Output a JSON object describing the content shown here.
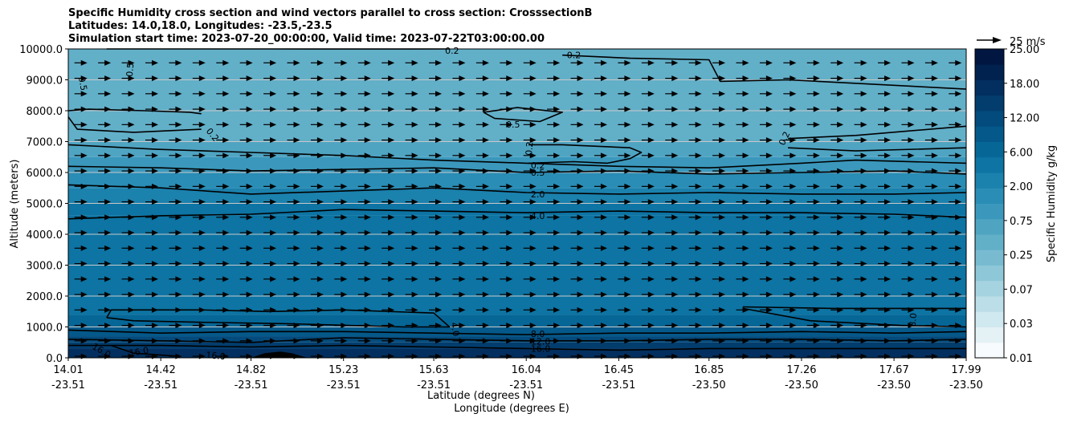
{
  "chart_data": {
    "type": "contour",
    "title_lines": [
      "Specific Humidity cross section and wind vectors parallel to cross section: CrosssectionB",
      "Latitudes: 14.0,18.0, Longitudes: -23.5,-23.5",
      "Simulation start time: 2023-07-20_00:00:00, Valid time: 2023-07-22T03:00:00.00"
    ],
    "xlabel_lat": "Latitude (degrees N)",
    "xlabel_lon": "Longitude (degrees E)",
    "ylabel": "Altitude (meters)",
    "ylim": [
      0,
      10000
    ],
    "xlim": [
      14.01,
      17.99
    ],
    "y_ticks": [
      "0.0",
      "1000.0",
      "2000.0",
      "3000.0",
      "4000.0",
      "5000.0",
      "6000.0",
      "7000.0",
      "8000.0",
      "9000.0",
      "10000.0"
    ],
    "y_tick_values": [
      0,
      1000,
      2000,
      3000,
      4000,
      5000,
      6000,
      7000,
      8000,
      9000,
      10000
    ],
    "x_ticks": [
      {
        "lat": "14.01",
        "lon": "-23.51"
      },
      {
        "lat": "14.42",
        "lon": "-23.51"
      },
      {
        "lat": "14.82",
        "lon": "-23.51"
      },
      {
        "lat": "15.23",
        "lon": "-23.51"
      },
      {
        "lat": "15.63",
        "lon": "-23.51"
      },
      {
        "lat": "16.04",
        "lon": "-23.51"
      },
      {
        "lat": "16.45",
        "lon": "-23.51"
      },
      {
        "lat": "16.85",
        "lon": "-23.50"
      },
      {
        "lat": "17.26",
        "lon": "-23.50"
      },
      {
        "lat": "17.67",
        "lon": "-23.50"
      },
      {
        "lat": "17.99",
        "lon": "-23.50"
      }
    ],
    "x_tick_values": [
      14.01,
      14.42,
      14.82,
      15.23,
      15.63,
      16.04,
      16.45,
      16.85,
      17.26,
      17.67,
      17.99
    ],
    "colorbar": {
      "label": "Specific Humidity g/kg",
      "tick_labels": [
        "0.01",
        "0.03",
        "0.07",
        "0.25",
        "0.75",
        "2.00",
        "6.00",
        "12.00",
        "18.00",
        "25.00"
      ],
      "colors": [
        "#f7fbfd",
        "#e4f1f5",
        "#d0e8ef",
        "#bcdee8",
        "#a6d3e0",
        "#8ec7d8",
        "#78bbd0",
        "#62afc8",
        "#4fa4c2",
        "#3b98bc",
        "#2a8db5",
        "#1b81ad",
        "#0d74a3",
        "#066797",
        "#04598a",
        "#034b7c",
        "#023d6e",
        "#022f5f",
        "#01224f",
        "#011640"
      ]
    },
    "humidity_bands": [
      {
        "z_from": 8000,
        "z_to": 10000,
        "value": 0.3
      },
      {
        "z_from": 7000,
        "z_to": 8000,
        "value": 0.4
      },
      {
        "z_from": 6500,
        "z_to": 7000,
        "value": 0.5
      },
      {
        "z_from": 6000,
        "z_to": 6500,
        "value": 0.9
      },
      {
        "z_from": 5500,
        "z_to": 6000,
        "value": 1.5
      },
      {
        "z_from": 5000,
        "z_to": 5500,
        "value": 2.5
      },
      {
        "z_from": 4600,
        "z_to": 5000,
        "value": 3.5
      },
      {
        "z_from": 1400,
        "z_to": 4600,
        "value": 5.0
      },
      {
        "z_from": 1000,
        "z_to": 1400,
        "value": 6.5
      },
      {
        "z_from": 700,
        "z_to": 1000,
        "value": 9.0
      },
      {
        "z_from": 500,
        "z_to": 700,
        "value": 12.0
      },
      {
        "z_from": 300,
        "z_to": 500,
        "value": 14.0
      },
      {
        "z_from": 0,
        "z_to": 300,
        "value": 17.0
      }
    ],
    "contours": [
      {
        "label": "0.2",
        "points": [
          [
            14.18,
            10000
          ],
          [
            14.5,
            9999
          ],
          [
            14.9,
            10000
          ],
          [
            15.3,
            9998
          ],
          [
            15.7,
            10000
          ]
        ]
      },
      {
        "label": "0.2",
        "points": [
          [
            16.2,
            9800
          ],
          [
            16.5,
            9700
          ],
          [
            16.85,
            9650
          ],
          [
            16.9,
            8950
          ],
          [
            17.2,
            9000
          ],
          [
            17.6,
            8850
          ],
          [
            17.99,
            8700
          ]
        ]
      },
      {
        "label": "0.5",
        "points": [
          [
            14.01,
            8000
          ],
          [
            14.1,
            8050
          ],
          [
            14.35,
            8000
          ],
          [
            14.55,
            7950
          ],
          [
            14.6,
            7900
          ]
        ]
      },
      {
        "label": "0.5",
        "points": [
          [
            14.01,
            7800
          ],
          [
            14.05,
            7400
          ],
          [
            14.3,
            7300
          ],
          [
            14.6,
            7400
          ]
        ]
      },
      {
        "label": "0.5",
        "points": [
          [
            15.85,
            7950
          ],
          [
            16.0,
            8100
          ],
          [
            16.2,
            7950
          ],
          [
            16.1,
            7650
          ],
          [
            15.9,
            7750
          ],
          [
            15.85,
            7950
          ]
        ]
      },
      {
        "label": "0.2",
        "points": [
          [
            16.05,
            6300
          ],
          [
            16.25,
            6350
          ],
          [
            16.4,
            6300
          ],
          [
            16.5,
            6450
          ],
          [
            16.55,
            6650
          ],
          [
            16.5,
            6800
          ],
          [
            16.2,
            6900
          ],
          [
            16.05,
            6900
          ]
        ]
      },
      {
        "label": "0.2",
        "points": [
          [
            17.2,
            7100
          ],
          [
            17.5,
            7200
          ],
          [
            17.99,
            7500
          ]
        ]
      },
      {
        "label": "0.2",
        "points": [
          [
            17.2,
            6800
          ],
          [
            17.5,
            6700
          ],
          [
            17.99,
            6800
          ]
        ]
      },
      {
        "label": "0.2",
        "points": [
          [
            14.01,
            6900
          ],
          [
            14.4,
            6750
          ],
          [
            14.82,
            6650
          ],
          [
            15.23,
            6550
          ],
          [
            15.63,
            6400
          ],
          [
            16.04,
            6300
          ],
          [
            16.45,
            6200
          ],
          [
            16.85,
            6150
          ],
          [
            17.26,
            6300
          ],
          [
            17.5,
            6400
          ],
          [
            17.99,
            6300
          ]
        ]
      },
      {
        "label": "0.5",
        "points": [
          [
            14.01,
            6200
          ],
          [
            14.42,
            6150
          ],
          [
            14.82,
            6050
          ],
          [
            15.23,
            6100
          ],
          [
            15.63,
            6150
          ],
          [
            16.04,
            6000
          ],
          [
            16.45,
            6050
          ],
          [
            16.85,
            5950
          ],
          [
            17.26,
            6000
          ],
          [
            17.67,
            6050
          ],
          [
            17.99,
            5950
          ]
        ]
      },
      {
        "label": "2.0",
        "points": [
          [
            14.01,
            5600
          ],
          [
            14.42,
            5500
          ],
          [
            14.82,
            5300
          ],
          [
            15.23,
            5400
          ],
          [
            15.63,
            5500
          ],
          [
            16.04,
            5350
          ],
          [
            16.45,
            5300
          ],
          [
            16.85,
            5350
          ],
          [
            17.26,
            5300
          ],
          [
            17.67,
            5300
          ],
          [
            17.99,
            5350
          ]
        ]
      },
      {
        "label": "4.0",
        "points": [
          [
            14.01,
            4500
          ],
          [
            14.42,
            4600
          ],
          [
            14.82,
            4650
          ],
          [
            15.23,
            4800
          ],
          [
            15.63,
            4750
          ],
          [
            16.04,
            4700
          ],
          [
            16.45,
            4750
          ],
          [
            16.85,
            4700
          ],
          [
            17.26,
            4700
          ],
          [
            17.67,
            4650
          ],
          [
            17.99,
            4550
          ]
        ]
      },
      {
        "label": "4.0",
        "points": [
          [
            14.18,
            1300
          ],
          [
            14.2,
            1550
          ],
          [
            14.6,
            1550
          ],
          [
            14.9,
            1500
          ],
          [
            15.23,
            1550
          ],
          [
            15.63,
            1450
          ],
          [
            15.7,
            1000
          ],
          [
            15.5,
            1000
          ],
          [
            15.0,
            1100
          ],
          [
            14.6,
            1150
          ],
          [
            14.3,
            1200
          ],
          [
            14.18,
            1300
          ]
        ]
      },
      {
        "label": "8.0",
        "points": [
          [
            17.0,
            1650
          ],
          [
            17.4,
            1600
          ],
          [
            17.99,
            1600
          ]
        ]
      },
      {
        "label": "8.0",
        "points": [
          [
            17.0,
            1600
          ],
          [
            17.3,
            1200
          ],
          [
            17.7,
            1050
          ],
          [
            17.99,
            1000
          ]
        ]
      },
      {
        "label": "8.0",
        "points": [
          [
            14.01,
            900
          ],
          [
            14.42,
            800
          ],
          [
            14.82,
            850
          ],
          [
            15.23,
            850
          ],
          [
            15.63,
            800
          ],
          [
            16.04,
            750
          ],
          [
            16.45,
            800
          ],
          [
            16.85,
            800
          ],
          [
            17.26,
            850
          ],
          [
            17.67,
            800
          ],
          [
            17.99,
            850
          ]
        ]
      },
      {
        "label": "12.0",
        "points": [
          [
            14.01,
            600
          ],
          [
            14.42,
            550
          ],
          [
            14.82,
            500
          ],
          [
            15.23,
            650
          ],
          [
            15.63,
            600
          ],
          [
            16.04,
            550
          ],
          [
            16.45,
            550
          ],
          [
            16.85,
            600
          ],
          [
            17.26,
            600
          ],
          [
            17.67,
            550
          ],
          [
            17.99,
            600
          ]
        ]
      },
      {
        "label": "16.0",
        "points": [
          [
            14.01,
            400
          ],
          [
            14.42,
            400
          ],
          [
            14.82,
            350
          ],
          [
            15.23,
            400
          ],
          [
            15.63,
            350
          ],
          [
            16.04,
            300
          ],
          [
            16.45,
            250
          ],
          [
            16.85,
            300
          ],
          [
            17.26,
            300
          ],
          [
            17.67,
            300
          ],
          [
            17.99,
            300
          ]
        ]
      },
      {
        "label": "16.0",
        "points": [
          [
            14.2,
            400
          ],
          [
            14.3,
            150
          ],
          [
            14.5,
            50
          ]
        ]
      }
    ],
    "contour_labels": [
      {
        "text": "0.2",
        "x": 15.68,
        "y": 9950,
        "angle": 0
      },
      {
        "text": "0.2",
        "x": 16.22,
        "y": 9800,
        "angle": 0
      },
      {
        "text": "0.5",
        "x": 14.07,
        "y": 9100,
        "angle": 80
      },
      {
        "text": "0.5",
        "x": 14.28,
        "y": 9100,
        "angle": -85
      },
      {
        "text": "0.2",
        "x": 14.63,
        "y": 7400,
        "angle": 50
      },
      {
        "text": "0.5",
        "x": 15.95,
        "y": 7560,
        "angle": 0
      },
      {
        "text": "0.2",
        "x": 16.05,
        "y": 6550,
        "angle": -85
      },
      {
        "text": "0.2",
        "x": 16.06,
        "y": 6230,
        "angle": 0
      },
      {
        "text": "0.5",
        "x": 16.06,
        "y": 6000,
        "angle": 0
      },
      {
        "text": "0.2",
        "x": 17.17,
        "y": 6900,
        "angle": -65
      },
      {
        "text": "2.0",
        "x": 16.06,
        "y": 5300,
        "angle": 0
      },
      {
        "text": "4.0",
        "x": 16.06,
        "y": 4600,
        "angle": 0
      },
      {
        "text": "4.0",
        "x": 15.72,
        "y": 1150,
        "angle": 80
      },
      {
        "text": "8.0",
        "x": 17.75,
        "y": 1000,
        "angle": -85
      },
      {
        "text": "8.0",
        "x": 16.06,
        "y": 780,
        "angle": 0
      },
      {
        "text": "12.0",
        "x": 16.06,
        "y": 530,
        "angle": 0
      },
      {
        "text": "16.0",
        "x": 16.06,
        "y": 300,
        "angle": 0
      },
      {
        "text": "16.0",
        "x": 14.62,
        "y": 100,
        "angle": 5
      },
      {
        "text": "16.0",
        "x": 14.28,
        "y": 150,
        "angle": -10
      },
      {
        "text": "16.0",
        "x": 14.12,
        "y": 400,
        "angle": 30
      }
    ],
    "terrain": {
      "points": [
        [
          14.82,
          0
        ],
        [
          14.88,
          150
        ],
        [
          14.95,
          200
        ],
        [
          15.0,
          150
        ],
        [
          15.07,
          0
        ]
      ]
    },
    "wind_vectors": {
      "x_count": 38,
      "z_count": 20,
      "z_top": 9550,
      "z_step": 500,
      "direction": "right",
      "reference": "25 m/s"
    }
  }
}
